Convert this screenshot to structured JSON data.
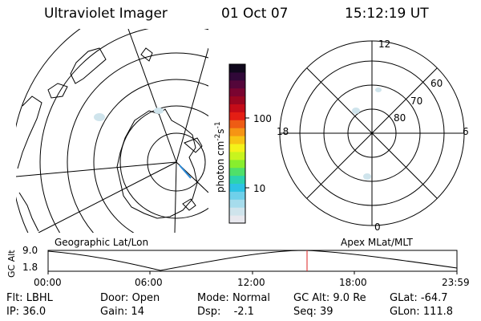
{
  "header": {
    "instrument": "Ultraviolet Imager",
    "date": "01 Oct 07",
    "time": "15:12:19 UT"
  },
  "colorbar": {
    "unit_main": "photon cm",
    "unit_sup1": "-2",
    "unit_s": "s",
    "unit_sup2": "-1",
    "ticks": [
      {
        "label": "100",
        "value": 100
      },
      {
        "label": "10",
        "value": 10
      }
    ],
    "colors": [
      "#e8e8ee",
      "#cfe4ec",
      "#a6dcec",
      "#6fd0ea",
      "#2ec3e4",
      "#2bd3b0",
      "#4fe06a",
      "#88ee2e",
      "#c8f41e",
      "#f4f21a",
      "#f8c414",
      "#f69414",
      "#ee5c14",
      "#e41e14",
      "#c40c18",
      "#9a0620",
      "#7a0430",
      "#54063a",
      "#300838",
      "#10081c"
    ]
  },
  "panels": {
    "left_label": "Geographic Lat/Lon",
    "right_label": "Apex MLat/MLT",
    "polar_mlt": {
      "top": "12",
      "left": "18",
      "right": "6",
      "bottom": "0"
    },
    "polar_mlat": [
      {
        "label": "60",
        "value": 60
      },
      {
        "label": "70",
        "value": 70
      },
      {
        "label": "80",
        "value": 80
      }
    ]
  },
  "orbit_plot": {
    "ylabel_1": "GC",
    "ylabel_2": "Alt",
    "yticks": [
      "9.0",
      "1.8"
    ],
    "xticks": [
      "00:00",
      "06:00",
      "12:00",
      "18:00",
      "23:59"
    ],
    "marker_time_hours": 15.2
  },
  "info": [
    [
      {
        "label": "Flt:",
        "value": "LBHL"
      },
      {
        "label": "Door:",
        "value": "Open"
      },
      {
        "label": "Mode:",
        "value": "Normal"
      },
      {
        "label": "GC Alt:",
        "value": "9.0 Re"
      },
      {
        "label": "GLat:",
        "value": "-64.7"
      }
    ],
    [
      {
        "label": "IP:",
        "value": "36.0"
      },
      {
        "label": "Gain:",
        "value": "14"
      },
      {
        "label": "Dsp:",
        "value": "-2.1"
      },
      {
        "label": "Seq:",
        "value": "39"
      },
      {
        "label": "GLon:",
        "value": "111.8"
      }
    ]
  ]
}
